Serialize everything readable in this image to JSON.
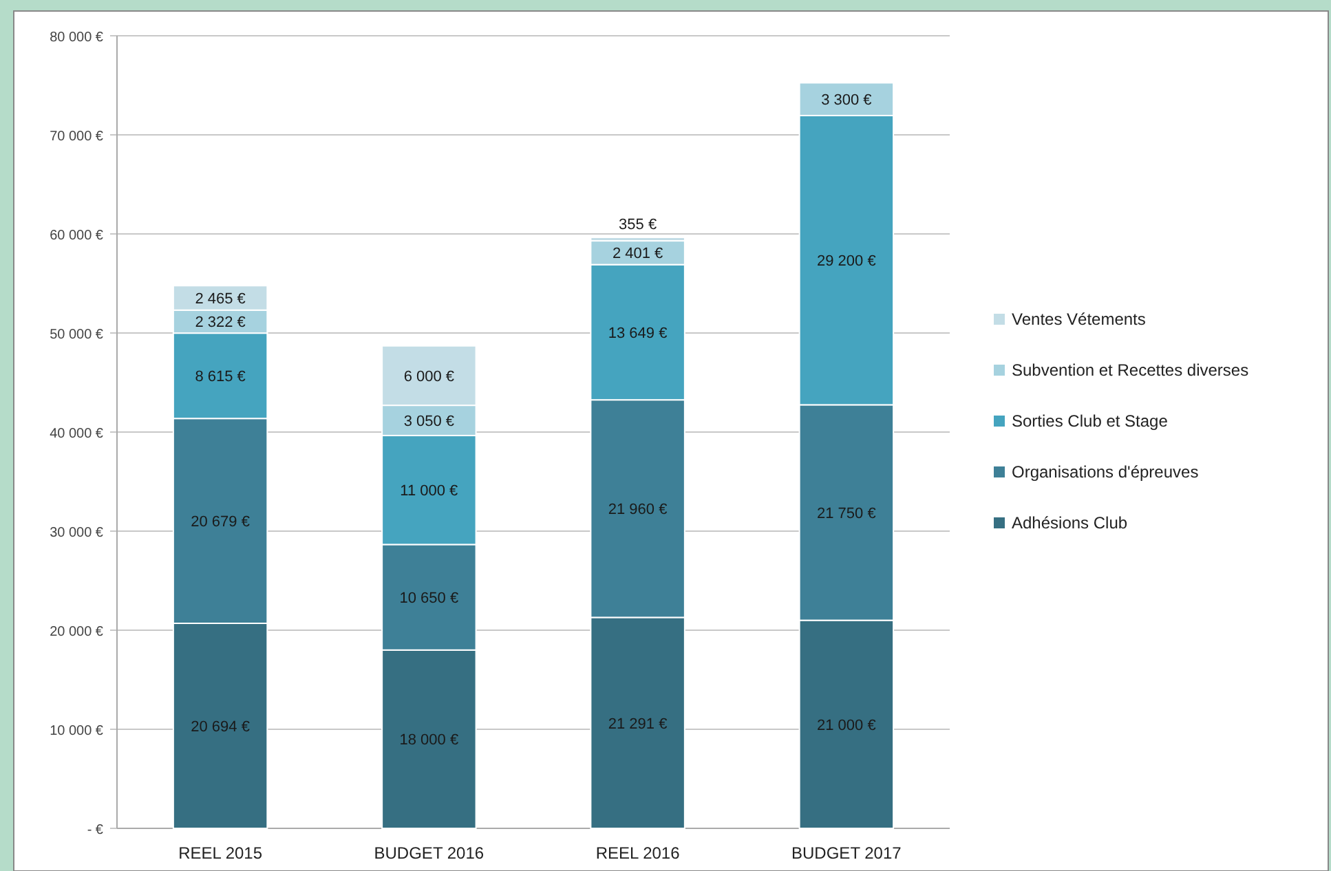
{
  "chart_data": {
    "type": "bar",
    "stacked": true,
    "categories": [
      "REEL 2015",
      "BUDGET 2016",
      "REEL 2016",
      "BUDGET 2017"
    ],
    "series": [
      {
        "name": "Adhésions Club",
        "color": "#366f82",
        "values": [
          20694,
          18000,
          21291,
          21000
        ],
        "value_labels": [
          "20 694 €",
          "18 000 €",
          "21 291 €",
          "21 000 €"
        ]
      },
      {
        "name": "Organisations d'épreuves",
        "color": "#3e8097",
        "values": [
          20679,
          10650,
          21960,
          21750
        ],
        "value_labels": [
          "20 679 €",
          "10 650 €",
          "21 960 €",
          "21 750 €"
        ]
      },
      {
        "name": "Sorties Club et Stage",
        "color": "#45a4bf",
        "values": [
          8615,
          11000,
          13649,
          29200
        ],
        "value_labels": [
          "8 615 €",
          "11 000 €",
          "13 649 €",
          "29 200 €"
        ]
      },
      {
        "name": "Subvention et Recettes diverses",
        "color": "#a6d2df",
        "values": [
          2322,
          3050,
          2401,
          3300
        ],
        "value_labels": [
          "2 322 €",
          "3 050 €",
          "2 401 €",
          "3 300 €"
        ]
      },
      {
        "name": "Ventes Vétements",
        "color": "#c3dde6",
        "values": [
          2465,
          6000,
          355,
          null
        ],
        "value_labels": [
          "2 465 €",
          "6 000 €",
          "355 €",
          null
        ]
      }
    ],
    "ylim": [
      0,
      80000
    ],
    "yticks": [
      {
        "value": 0,
        "label": "- €"
      },
      {
        "value": 10000,
        "label": "10 000 €"
      },
      {
        "value": 20000,
        "label": "20 000 €"
      },
      {
        "value": 30000,
        "label": "30 000 €"
      },
      {
        "value": 40000,
        "label": "40 000 €"
      },
      {
        "value": 50000,
        "label": "50 000 €"
      },
      {
        "value": 60000,
        "label": "60 000 €"
      },
      {
        "value": 70000,
        "label": "70 000 €"
      },
      {
        "value": 80000,
        "label": "80 000 €"
      }
    ],
    "grid": "y",
    "legend": "right"
  }
}
